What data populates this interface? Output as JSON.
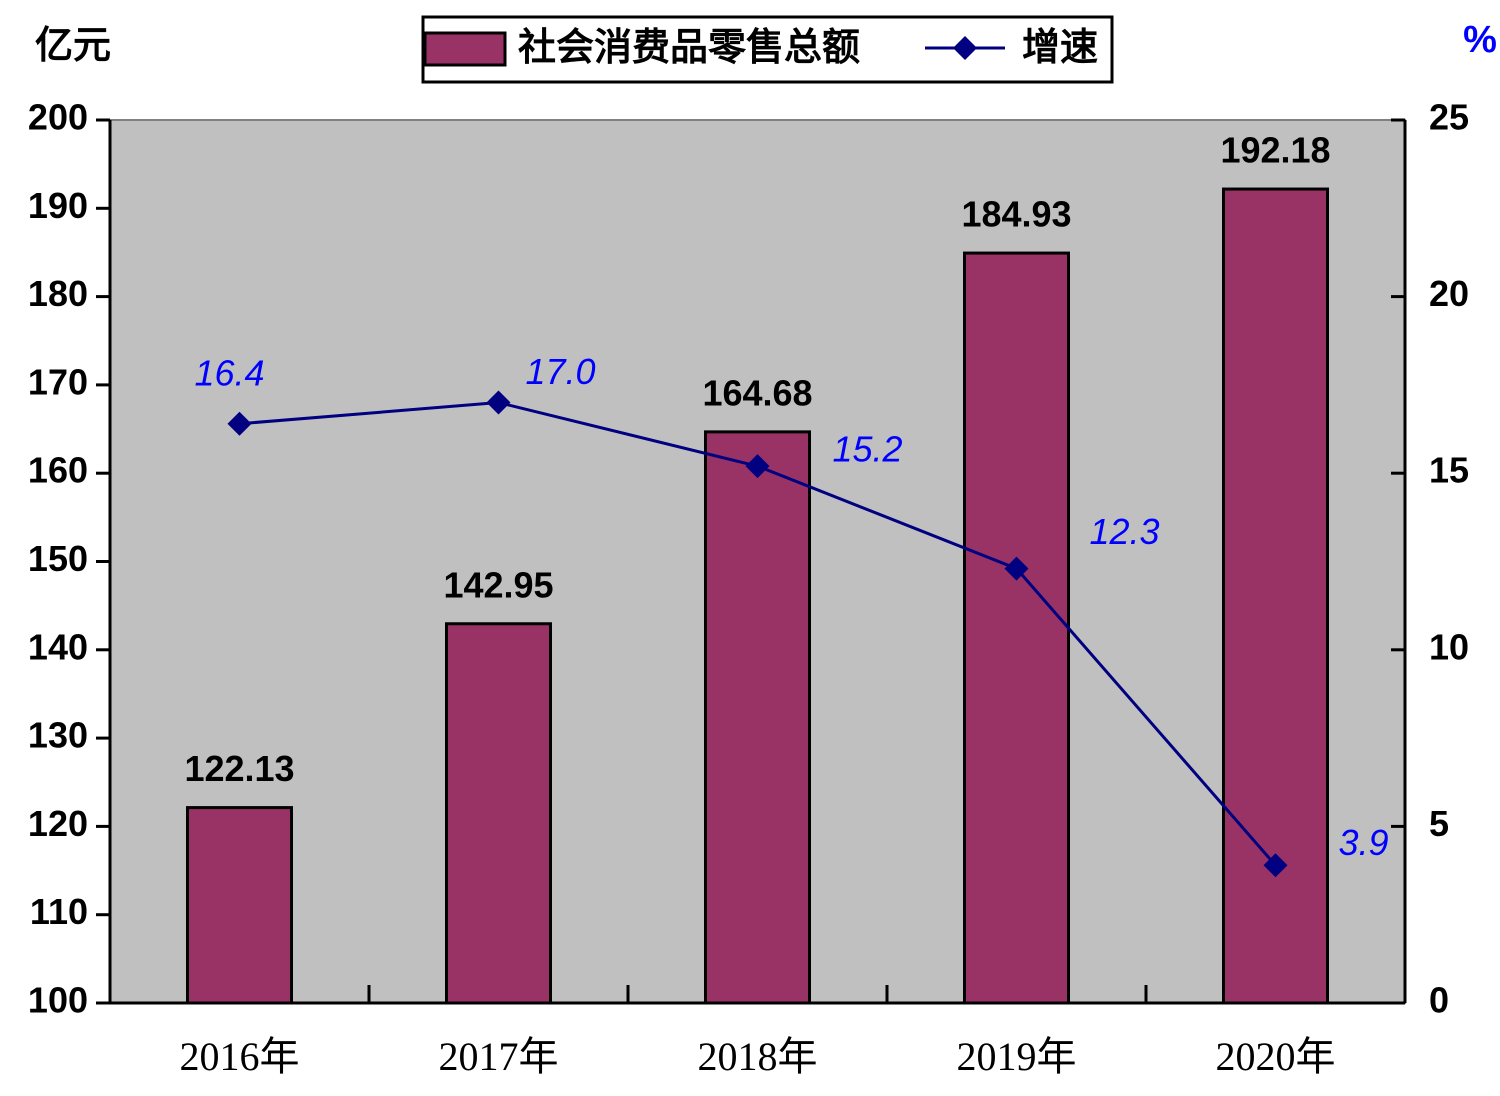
{
  "chart_data": {
    "type": "bar",
    "y_label": "亿元",
    "y2_label": "%",
    "categories": [
      "2016年",
      "2017年",
      "2018年",
      "2019年",
      "2020年"
    ],
    "series": [
      {
        "name": "社会消费品零售总额",
        "color": "#993366",
        "values": [
          122.13,
          142.95,
          164.68,
          184.93,
          192.18
        ]
      },
      {
        "name": "增速",
        "type": "line",
        "axis": "y2",
        "color": "#000080",
        "values": [
          16.4,
          17.0,
          15.2,
          12.3,
          3.9
        ],
        "value_labels": [
          "16.4",
          "17.0",
          "15.2",
          "12.3",
          "3.9"
        ]
      }
    ],
    "ylim": [
      100,
      200
    ],
    "yticks": [
      100,
      110,
      120,
      130,
      140,
      150,
      160,
      170,
      180,
      190,
      200
    ],
    "y2lim": [
      0,
      25
    ],
    "y2ticks": [
      0,
      5,
      10,
      15,
      20,
      25
    ],
    "grid": false,
    "legend": "top"
  }
}
